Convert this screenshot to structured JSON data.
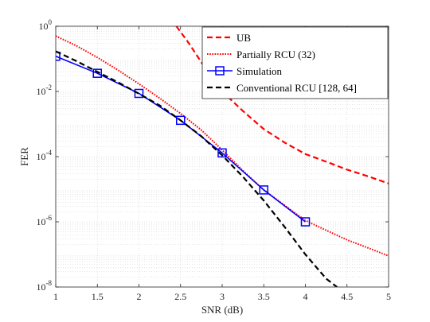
{
  "chart_data": {
    "type": "line",
    "xlabel": "SNR (dB)",
    "ylabel": "FER",
    "xlim": [
      1,
      5
    ],
    "ylim": [
      1e-08,
      1
    ],
    "yscale": "log",
    "grid": true,
    "minor_grid": true,
    "legend_position": "top-right",
    "x_ticks": [
      {
        "value": 1,
        "label": "1"
      },
      {
        "value": 1.5,
        "label": "1.5"
      },
      {
        "value": 2,
        "label": "2"
      },
      {
        "value": 2.5,
        "label": "2.5"
      },
      {
        "value": 3,
        "label": "3"
      },
      {
        "value": 3.5,
        "label": "3.5"
      },
      {
        "value": 4,
        "label": "4"
      },
      {
        "value": 4.5,
        "label": "4.5"
      },
      {
        "value": 5,
        "label": "5"
      }
    ],
    "y_ticks": [
      {
        "exp": 0,
        "base": "10",
        "sup": "0"
      },
      {
        "exp": -2,
        "base": "10",
        "sup": "-2"
      },
      {
        "exp": -4,
        "base": "10",
        "sup": "-4"
      },
      {
        "exp": -6,
        "base": "10",
        "sup": "-6"
      },
      {
        "exp": -8,
        "base": "10",
        "sup": "-8"
      }
    ],
    "series": [
      {
        "name": "UB",
        "color": "#ff0000",
        "style": "dashed",
        "marker": "none",
        "points": [
          [
            2.45,
            1.0
          ],
          [
            2.6,
            0.3
          ],
          [
            2.8,
            0.05
          ],
          [
            3.0,
            0.01
          ],
          [
            3.25,
            0.0025
          ],
          [
            3.5,
            0.0007
          ],
          [
            3.75,
            0.00027
          ],
          [
            4.0,
            0.00012
          ],
          [
            4.25,
            7e-05
          ],
          [
            4.5,
            4e-05
          ],
          [
            4.75,
            2.5e-05
          ],
          [
            5.0,
            1.5e-05
          ]
        ]
      },
      {
        "name": "Partially RCU (32)",
        "color": "#ff0000",
        "style": "dotted",
        "marker": "none",
        "points": [
          [
            1.0,
            0.5
          ],
          [
            1.25,
            0.25
          ],
          [
            1.5,
            0.11
          ],
          [
            1.75,
            0.045
          ],
          [
            2.0,
            0.017
          ],
          [
            2.25,
            0.0062
          ],
          [
            2.5,
            0.0021
          ],
          [
            2.75,
            0.00065
          ],
          [
            3.0,
            0.00016
          ],
          [
            3.25,
            3.7e-05
          ],
          [
            3.5,
            9.5e-06
          ],
          [
            3.75,
            3.2e-06
          ],
          [
            4.0,
            1.1e-06
          ],
          [
            4.25,
            5.5e-07
          ],
          [
            4.5,
            2.8e-07
          ],
          [
            4.75,
            1.6e-07
          ],
          [
            5.0,
            9e-08
          ]
        ]
      },
      {
        "name": "Simulation",
        "color": "#0000ff",
        "style": "solid",
        "marker": "square",
        "points": [
          [
            1.0,
            0.12
          ],
          [
            1.5,
            0.036
          ],
          [
            2.0,
            0.0087
          ],
          [
            2.5,
            0.0013
          ],
          [
            3.0,
            0.00013
          ],
          [
            3.5,
            9.5e-06
          ],
          [
            4.0,
            1e-06
          ]
        ]
      },
      {
        "name": "Conventional RCU [128, 64]",
        "color": "#000000",
        "style": "dashed",
        "marker": "none",
        "points": [
          [
            1.0,
            0.17
          ],
          [
            1.25,
            0.085
          ],
          [
            1.5,
            0.04
          ],
          [
            1.75,
            0.019
          ],
          [
            2.0,
            0.0085
          ],
          [
            2.25,
            0.0037
          ],
          [
            2.5,
            0.0013
          ],
          [
            2.75,
            0.00042
          ],
          [
            3.0,
            0.00011
          ],
          [
            3.25,
            2.4e-05
          ],
          [
            3.5,
            4.5e-06
          ],
          [
            3.75,
            7e-07
          ],
          [
            4.0,
            1e-07
          ],
          [
            4.25,
            1.8e-08
          ],
          [
            4.38,
            1e-08
          ]
        ]
      }
    ]
  }
}
